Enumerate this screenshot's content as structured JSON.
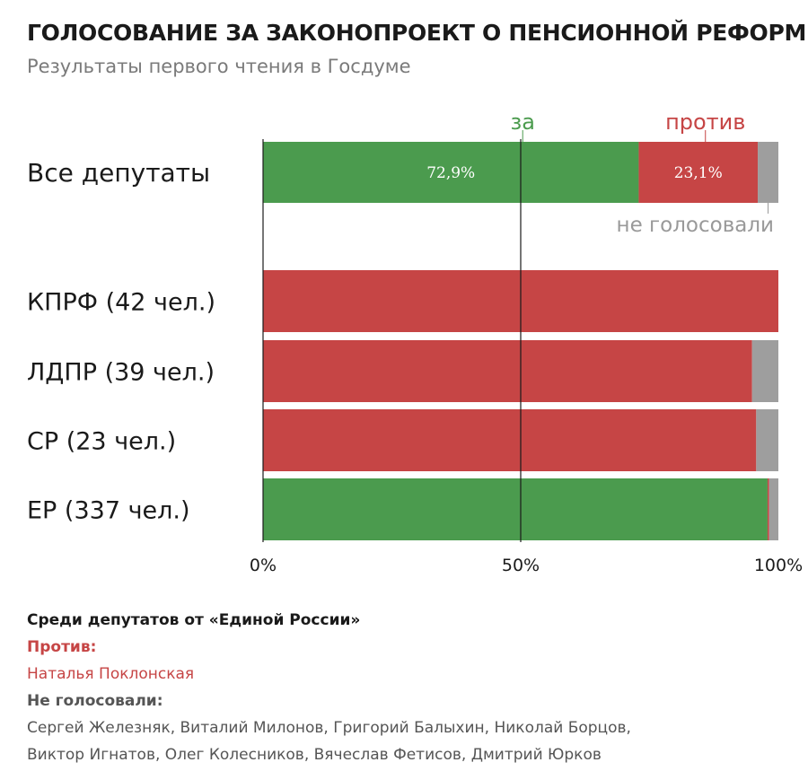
{
  "header": {
    "title": "ГОЛОСОВАНИЕ ЗА ЗАКОНОПРОЕКТ О ПЕНСИОННОЙ РЕФОРМЕ",
    "subtitle": "Результаты первого чтения в Госдуме"
  },
  "colors": {
    "for": "#4b9b4e",
    "against": "#c64545",
    "abstain": "#9e9e9e",
    "annotation_gray": "#999999"
  },
  "chart_data": {
    "type": "bar",
    "orientation": "horizontal",
    "stacked": true,
    "categories": [
      "Все депутаты",
      "КПРФ (42 чел.)",
      "ЛДПР (39 чел.)",
      "СР (23 чел.)",
      "ЕР (337 чел.)"
    ],
    "series": [
      {
        "name": "за",
        "values": [
          72.9,
          0,
          0,
          0,
          97.9
        ]
      },
      {
        "name": "против",
        "values": [
          23.1,
          100,
          94.9,
          95.7,
          0.3
        ]
      },
      {
        "name": "не голосовали",
        "values": [
          4.0,
          0,
          5.1,
          4.3,
          1.8
        ]
      }
    ],
    "data_labels": [
      "72,9%",
      "23,1%"
    ],
    "x_ticks": [
      "0%",
      "50%",
      "100%"
    ],
    "xlim": [
      0,
      100
    ],
    "legend": "annotations on first bar"
  },
  "notes": {
    "heading": "Среди депутатов от «Единой России»",
    "against_label": "Против:",
    "against_names": "Наталья Поклонская",
    "abstain_label": "Не голосовали:",
    "abstain_names_1": "Сергей Железняк, Виталий Милонов, Григорий Балыхин, Николай Борцов,",
    "abstain_names_2": "Виктор Игнатов, Олег Колесников, Вячеслав Фетисов, Дмитрий Юрков"
  }
}
